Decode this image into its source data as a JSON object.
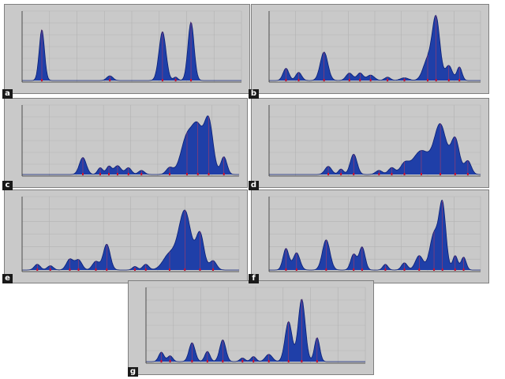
{
  "figure": {
    "panels": [
      {
        "label": "a"
      },
      {
        "label": "b"
      },
      {
        "label": "c"
      },
      {
        "label": "d"
      },
      {
        "label": "e"
      },
      {
        "label": "f"
      },
      {
        "label": "g"
      }
    ]
  },
  "chart_data": [
    {
      "panel": "a",
      "type": "area",
      "xlim": [
        0,
        1
      ],
      "ylim": [
        0,
        1
      ],
      "grid": true,
      "peaks": [
        {
          "x": 0.09,
          "h": 0.75,
          "w": 0.012
        },
        {
          "x": 0.4,
          "h": 0.07,
          "w": 0.014
        },
        {
          "x": 0.64,
          "h": 0.72,
          "w": 0.016
        },
        {
          "x": 0.7,
          "h": 0.05,
          "w": 0.01
        },
        {
          "x": 0.77,
          "h": 0.86,
          "w": 0.014
        }
      ]
    },
    {
      "panel": "b",
      "type": "area",
      "xlim": [
        0,
        1
      ],
      "ylim": [
        0,
        1
      ],
      "grid": true,
      "peaks": [
        {
          "x": 0.08,
          "h": 0.18,
          "w": 0.014
        },
        {
          "x": 0.14,
          "h": 0.12,
          "w": 0.014
        },
        {
          "x": 0.26,
          "h": 0.42,
          "w": 0.018
        },
        {
          "x": 0.38,
          "h": 0.11,
          "w": 0.016
        },
        {
          "x": 0.43,
          "h": 0.11,
          "w": 0.014
        },
        {
          "x": 0.48,
          "h": 0.08,
          "w": 0.018
        },
        {
          "x": 0.56,
          "h": 0.05,
          "w": 0.014
        },
        {
          "x": 0.64,
          "h": 0.04,
          "w": 0.02
        },
        {
          "x": 0.75,
          "h": 0.3,
          "w": 0.022
        },
        {
          "x": 0.79,
          "h": 0.9,
          "w": 0.018
        },
        {
          "x": 0.85,
          "h": 0.22,
          "w": 0.016
        },
        {
          "x": 0.9,
          "h": 0.2,
          "w": 0.012
        }
      ]
    },
    {
      "panel": "c",
      "type": "area",
      "xlim": [
        0,
        1
      ],
      "ylim": [
        0,
        1
      ],
      "grid": true,
      "peaks": [
        {
          "x": 0.28,
          "h": 0.25,
          "w": 0.016
        },
        {
          "x": 0.36,
          "h": 0.1,
          "w": 0.012
        },
        {
          "x": 0.4,
          "h": 0.12,
          "w": 0.012
        },
        {
          "x": 0.44,
          "h": 0.13,
          "w": 0.016
        },
        {
          "x": 0.49,
          "h": 0.1,
          "w": 0.014
        },
        {
          "x": 0.55,
          "h": 0.06,
          "w": 0.014
        },
        {
          "x": 0.68,
          "h": 0.1,
          "w": 0.016
        },
        {
          "x": 0.76,
          "h": 0.55,
          "w": 0.028
        },
        {
          "x": 0.81,
          "h": 0.62,
          "w": 0.024
        },
        {
          "x": 0.86,
          "h": 0.78,
          "w": 0.02
        },
        {
          "x": 0.93,
          "h": 0.26,
          "w": 0.014
        }
      ]
    },
    {
      "panel": "d",
      "type": "area",
      "xlim": [
        0,
        1
      ],
      "ylim": [
        0,
        1
      ],
      "grid": true,
      "peaks": [
        {
          "x": 0.28,
          "h": 0.12,
          "w": 0.016
        },
        {
          "x": 0.34,
          "h": 0.08,
          "w": 0.012
        },
        {
          "x": 0.4,
          "h": 0.3,
          "w": 0.016
        },
        {
          "x": 0.52,
          "h": 0.06,
          "w": 0.016
        },
        {
          "x": 0.58,
          "h": 0.1,
          "w": 0.016
        },
        {
          "x": 0.64,
          "h": 0.14,
          "w": 0.02
        },
        {
          "x": 0.72,
          "h": 0.35,
          "w": 0.04
        },
        {
          "x": 0.81,
          "h": 0.72,
          "w": 0.028
        },
        {
          "x": 0.88,
          "h": 0.52,
          "w": 0.02
        },
        {
          "x": 0.94,
          "h": 0.2,
          "w": 0.016
        }
      ]
    },
    {
      "panel": "e",
      "type": "area",
      "xlim": [
        0,
        1
      ],
      "ylim": [
        0,
        1
      ],
      "grid": true,
      "peaks": [
        {
          "x": 0.07,
          "h": 0.08,
          "w": 0.014
        },
        {
          "x": 0.13,
          "h": 0.06,
          "w": 0.014
        },
        {
          "x": 0.22,
          "h": 0.15,
          "w": 0.016
        },
        {
          "x": 0.26,
          "h": 0.14,
          "w": 0.016
        },
        {
          "x": 0.34,
          "h": 0.12,
          "w": 0.016
        },
        {
          "x": 0.39,
          "h": 0.36,
          "w": 0.016
        },
        {
          "x": 0.52,
          "h": 0.05,
          "w": 0.012
        },
        {
          "x": 0.57,
          "h": 0.08,
          "w": 0.014
        },
        {
          "x": 0.68,
          "h": 0.22,
          "w": 0.03
        },
        {
          "x": 0.75,
          "h": 0.82,
          "w": 0.028
        },
        {
          "x": 0.82,
          "h": 0.5,
          "w": 0.018
        },
        {
          "x": 0.88,
          "h": 0.13,
          "w": 0.016
        }
      ]
    },
    {
      "panel": "f",
      "type": "area",
      "xlim": [
        0,
        1
      ],
      "ylim": [
        0,
        1
      ],
      "grid": true,
      "peaks": [
        {
          "x": 0.08,
          "h": 0.3,
          "w": 0.014
        },
        {
          "x": 0.13,
          "h": 0.24,
          "w": 0.016
        },
        {
          "x": 0.27,
          "h": 0.42,
          "w": 0.018
        },
        {
          "x": 0.4,
          "h": 0.22,
          "w": 0.014
        },
        {
          "x": 0.44,
          "h": 0.32,
          "w": 0.014
        },
        {
          "x": 0.55,
          "h": 0.08,
          "w": 0.012
        },
        {
          "x": 0.64,
          "h": 0.1,
          "w": 0.014
        },
        {
          "x": 0.71,
          "h": 0.2,
          "w": 0.018
        },
        {
          "x": 0.78,
          "h": 0.5,
          "w": 0.02
        },
        {
          "x": 0.82,
          "h": 0.9,
          "w": 0.016
        },
        {
          "x": 0.88,
          "h": 0.2,
          "w": 0.012
        },
        {
          "x": 0.92,
          "h": 0.18,
          "w": 0.012
        }
      ]
    },
    {
      "panel": "g",
      "type": "area",
      "xlim": [
        0,
        1
      ],
      "ylim": [
        0,
        1
      ],
      "grid": true,
      "peaks": [
        {
          "x": 0.07,
          "h": 0.13,
          "w": 0.012
        },
        {
          "x": 0.11,
          "h": 0.08,
          "w": 0.012
        },
        {
          "x": 0.21,
          "h": 0.26,
          "w": 0.014
        },
        {
          "x": 0.28,
          "h": 0.14,
          "w": 0.012
        },
        {
          "x": 0.35,
          "h": 0.3,
          "w": 0.014
        },
        {
          "x": 0.44,
          "h": 0.05,
          "w": 0.012
        },
        {
          "x": 0.49,
          "h": 0.07,
          "w": 0.012
        },
        {
          "x": 0.56,
          "h": 0.1,
          "w": 0.016
        },
        {
          "x": 0.65,
          "h": 0.55,
          "w": 0.016
        },
        {
          "x": 0.71,
          "h": 0.86,
          "w": 0.016
        },
        {
          "x": 0.78,
          "h": 0.33,
          "w": 0.012
        }
      ]
    }
  ]
}
